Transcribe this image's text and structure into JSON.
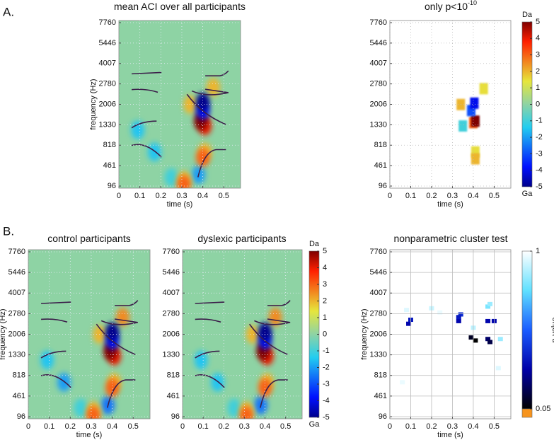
{
  "panel_labels": [
    "A.",
    "B."
  ],
  "chart_data": [
    {
      "type": "heatmap",
      "title": "mean ACI over all participants",
      "xlabel": "time (s)",
      "ylabel": "frequency (Hz)",
      "xlim": [
        0,
        0.58
      ],
      "xticks": [
        0,
        0.1,
        0.2,
        0.3,
        0.4,
        0.5
      ],
      "ylim": [
        96,
        7760
      ],
      "yticks": [
        96,
        461,
        818,
        1330,
        2006,
        2780,
        4007,
        5446,
        7760
      ],
      "grid": true,
      "grid_style": "dotted",
      "smooth": true,
      "formant_tracks": true,
      "cells": [
        {
          "x": 0.25,
          "y": 250,
          "value": -1
        },
        {
          "x": 0.09,
          "y": 1200,
          "value": -1.5
        },
        {
          "x": 0.17,
          "y": 700,
          "value": -1.5
        },
        {
          "x": 0.38,
          "y": 300,
          "value": -2
        },
        {
          "x": 0.31,
          "y": 200,
          "value": 2
        },
        {
          "x": 0.31,
          "y": 120,
          "value": 3
        },
        {
          "x": 0.41,
          "y": 700,
          "value": 2
        },
        {
          "x": 0.4,
          "y": 600,
          "value": 3
        },
        {
          "x": 0.34,
          "y": 2000,
          "value": 2
        },
        {
          "x": 0.45,
          "y": 2650,
          "value": 2
        },
        {
          "x": 0.41,
          "y": 1300,
          "value": 4
        },
        {
          "x": 0.39,
          "y": 1450,
          "value": 5
        },
        {
          "x": 0.4,
          "y": 1800,
          "value": -4
        },
        {
          "x": 0.4,
          "y": 2100,
          "value": -5
        }
      ]
    },
    {
      "type": "heatmap",
      "title": "only p<10",
      "title_superscript": "-10",
      "xlabel": "time (s)",
      "xlim": [
        0,
        0.58
      ],
      "xticks": [
        0,
        0.1,
        0.2,
        0.3,
        0.4,
        0.5
      ],
      "ylim": [
        96,
        7760
      ],
      "yticks": [
        96,
        461,
        818,
        1330,
        2006,
        2780,
        4007,
        5446,
        7760
      ],
      "grid": true,
      "grid_style": "dotted",
      "smooth": false,
      "background": "#ffffff",
      "colorbar": {
        "lim": [
          -5,
          5
        ],
        "ticks": [
          5,
          4,
          3,
          2,
          1,
          0,
          -1,
          -2,
          -3,
          -4,
          -5
        ],
        "top_label": "Da",
        "bottom_label": "Ga"
      },
      "cells": [
        {
          "x": 0.41,
          "y": 700,
          "value": 1.5
        },
        {
          "x": 0.41,
          "y": 580,
          "value": 2
        },
        {
          "x": 0.35,
          "y": 1300,
          "value": -1
        },
        {
          "x": 0.34,
          "y": 2000,
          "value": 2
        },
        {
          "x": 0.45,
          "y": 2600,
          "value": 1.5
        },
        {
          "x": 0.4,
          "y": 1400,
          "value": 3
        },
        {
          "x": 0.41,
          "y": 1450,
          "value": 5
        },
        {
          "x": 0.39,
          "y": 1800,
          "value": -3
        },
        {
          "x": 0.405,
          "y": 2050,
          "value": -4
        }
      ]
    },
    {
      "type": "heatmap",
      "title": "control participants",
      "xlabel": "time (s)",
      "ylabel": "frequency (Hz)",
      "xlim": [
        0,
        0.58
      ],
      "xticks": [
        0,
        0.1,
        0.2,
        0.3,
        0.4,
        0.5
      ],
      "ylim": [
        96,
        7760
      ],
      "yticks": [
        96,
        461,
        818,
        1330,
        2006,
        2780,
        4007,
        5446,
        7760
      ],
      "grid": true,
      "grid_style": "dotted",
      "smooth": true,
      "formant_tracks": true,
      "cells": [
        {
          "x": 0.25,
          "y": 250,
          "value": -1
        },
        {
          "x": 0.09,
          "y": 1200,
          "value": -1.5
        },
        {
          "x": 0.17,
          "y": 700,
          "value": -2
        },
        {
          "x": 0.38,
          "y": 300,
          "value": -2.5
        },
        {
          "x": 0.31,
          "y": 200,
          "value": 2
        },
        {
          "x": 0.31,
          "y": 110,
          "value": 3
        },
        {
          "x": 0.41,
          "y": 700,
          "value": 2
        },
        {
          "x": 0.4,
          "y": 600,
          "value": 3
        },
        {
          "x": 0.34,
          "y": 2000,
          "value": 2
        },
        {
          "x": 0.45,
          "y": 2650,
          "value": 2.5
        },
        {
          "x": 0.41,
          "y": 1300,
          "value": 4
        },
        {
          "x": 0.39,
          "y": 1450,
          "value": 5
        },
        {
          "x": 0.4,
          "y": 1800,
          "value": -4
        },
        {
          "x": 0.4,
          "y": 2100,
          "value": -5
        }
      ]
    },
    {
      "type": "heatmap",
      "title": "dyslexic participants",
      "xlim": [
        0,
        0.58
      ],
      "xticks": [
        0,
        0.1,
        0.2,
        0.3,
        0.4,
        0.5
      ],
      "ylim": [
        96,
        7760
      ],
      "yticks": [
        96,
        461,
        818,
        1330,
        2006,
        2780,
        4007,
        5446,
        7760
      ],
      "grid": true,
      "grid_style": "dotted",
      "smooth": true,
      "formant_tracks": true,
      "colorbar": {
        "lim": [
          -5,
          5
        ],
        "ticks": [
          5,
          4,
          3,
          2,
          1,
          0,
          -1,
          -2,
          -3,
          -4,
          -5
        ],
        "top_label": "Da",
        "bottom_label": "Ga"
      },
      "cells": [
        {
          "x": 0.25,
          "y": 250,
          "value": -1
        },
        {
          "x": 0.09,
          "y": 1200,
          "value": -1.5
        },
        {
          "x": 0.17,
          "y": 700,
          "value": -1.5
        },
        {
          "x": 0.38,
          "y": 300,
          "value": -2.5
        },
        {
          "x": 0.31,
          "y": 200,
          "value": 2
        },
        {
          "x": 0.31,
          "y": 110,
          "value": 3
        },
        {
          "x": 0.41,
          "y": 700,
          "value": 2
        },
        {
          "x": 0.4,
          "y": 600,
          "value": 3
        },
        {
          "x": 0.34,
          "y": 2000,
          "value": 2
        },
        {
          "x": 0.45,
          "y": 2650,
          "value": 2.5
        },
        {
          "x": 0.41,
          "y": 1300,
          "value": 4
        },
        {
          "x": 0.39,
          "y": 1450,
          "value": 5
        },
        {
          "x": 0.4,
          "y": 1800,
          "value": -4
        },
        {
          "x": 0.4,
          "y": 2100,
          "value": -5
        }
      ]
    },
    {
      "type": "clustermap",
      "title": "nonparametric cluster test",
      "xlabel": "time (s)",
      "ylabel": "frequency (Hz)",
      "xlim": [
        0,
        0.58
      ],
      "xticks": [
        0,
        0.1,
        0.2,
        0.3,
        0.4,
        0.5
      ],
      "ylim": [
        96,
        7760
      ],
      "yticks": [
        96,
        461,
        818,
        1330,
        2006,
        2780,
        4007,
        5446,
        7760
      ],
      "grid": true,
      "grid_style": "solid",
      "background": "#ffffff",
      "colorbar": {
        "lim": [
          0.05,
          1
        ],
        "ticks": [
          1,
          0.05
        ],
        "label": "p-value",
        "below_color": "#f7941d"
      },
      "cells": [
        {
          "x": 0.06,
          "y": 700,
          "value": 0.97
        },
        {
          "x": 0.08,
          "y": 3000,
          "value": 0.95
        },
        {
          "x": 0.09,
          "y": 2400,
          "value": 0.3
        },
        {
          "x": 0.1,
          "y": 2550,
          "value": 0.35
        },
        {
          "x": 0.2,
          "y": 3100,
          "value": 0.92
        },
        {
          "x": 0.24,
          "y": 2850,
          "value": 0.97
        },
        {
          "x": 0.33,
          "y": 2500,
          "value": 0.3
        },
        {
          "x": 0.34,
          "y": 2750,
          "value": 0.4
        },
        {
          "x": 0.33,
          "y": 2650,
          "value": 0.35
        },
        {
          "x": 0.4,
          "y": 2250,
          "value": 0.9
        },
        {
          "x": 0.39,
          "y": 1900,
          "value": 0.1
        },
        {
          "x": 0.41,
          "y": 1800,
          "value": 0.05
        },
        {
          "x": 0.47,
          "y": 2500,
          "value": 0.3
        },
        {
          "x": 0.5,
          "y": 2500,
          "value": 0.3
        },
        {
          "x": 0.47,
          "y": 3200,
          "value": 0.8
        },
        {
          "x": 0.48,
          "y": 3350,
          "value": 0.85
        },
        {
          "x": 0.47,
          "y": 1850,
          "value": 0.2
        },
        {
          "x": 0.48,
          "y": 1750,
          "value": 0.15
        },
        {
          "x": 0.53,
          "y": 1850,
          "value": 0.85
        },
        {
          "x": 0.52,
          "y": 1000,
          "value": 0.95
        }
      ]
    }
  ]
}
